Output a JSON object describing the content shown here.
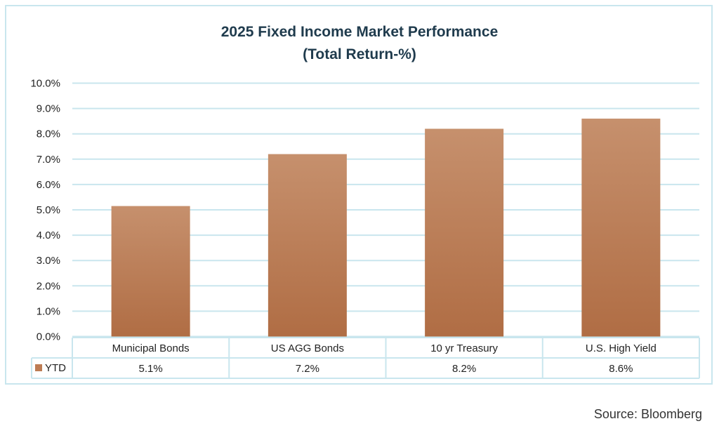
{
  "chart_data": {
    "type": "bar",
    "title": "2025  Fixed Income Market Performance",
    "subtitle": "(Total Return-%)",
    "categories": [
      "Municipal Bonds",
      "US AGG Bonds",
      "10 yr Treasury",
      "U.S. High Yield"
    ],
    "series": [
      {
        "name": "YTD",
        "values": [
          5.15,
          7.2,
          8.2,
          8.6
        ],
        "value_labels": [
          "5.1%",
          "7.2%",
          "8.2%",
          "8.6%"
        ]
      }
    ],
    "ylim": [
      0,
      10
    ],
    "yticks": [
      "0.0%",
      "1.0%",
      "2.0%",
      "3.0%",
      "4.0%",
      "5.0%",
      "6.0%",
      "7.0%",
      "8.0%",
      "9.0%",
      "10.0%"
    ],
    "grid": true,
    "legend": "data-table",
    "colors": {
      "bar": "#bd7c54",
      "grid": "#c9e6ee",
      "title": "#1f3b4d"
    }
  },
  "source": "Source: Bloomberg"
}
